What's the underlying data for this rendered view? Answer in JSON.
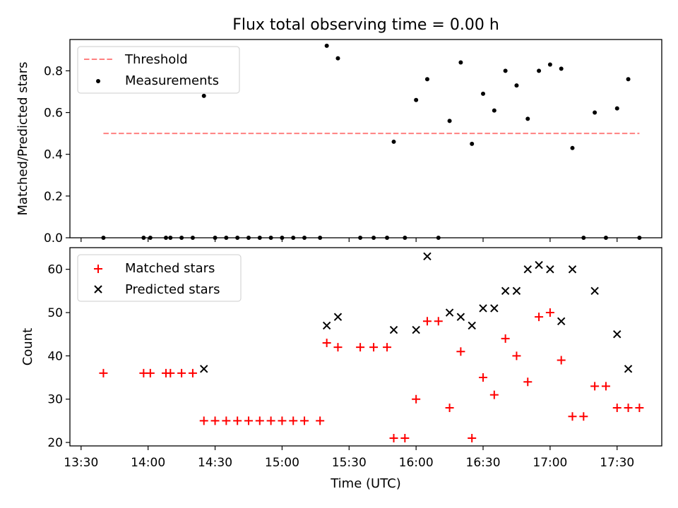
{
  "figure": {
    "title": "Flux total observing time = 0.00 h",
    "xlabel": "Time (UTC)"
  },
  "colors": {
    "threshold": "#ff8080",
    "measurement": "#000000",
    "matched": "#ff0000",
    "predicted": "#000000"
  },
  "chart_data": [
    {
      "type": "scatter",
      "ylabel": "Matched/Predicted stars",
      "ylim": [
        0,
        0.95
      ],
      "yticks": [
        "0.0",
        "0.2",
        "0.4",
        "0.6",
        "0.8"
      ],
      "xticks_shown": false,
      "legend_placement": "top-left",
      "series": [
        {
          "name": "Threshold",
          "kind": "dashed-line",
          "x": [
            "13:40",
            "17:40"
          ],
          "y": [
            0.5,
            0.5
          ]
        },
        {
          "name": "Measurements",
          "kind": "points",
          "x": [
            "13:40",
            "13:58",
            "14:01",
            "14:08",
            "14:10",
            "14:15",
            "14:20",
            "14:25",
            "14:30",
            "14:35",
            "14:40",
            "14:45",
            "14:50",
            "14:55",
            "15:00",
            "15:05",
            "15:10",
            "15:17",
            "15:20",
            "15:25",
            "15:35",
            "15:41",
            "15:47",
            "15:50",
            "15:55",
            "16:00",
            "16:05",
            "16:10",
            "16:15",
            "16:20",
            "16:25",
            "16:30",
            "16:35",
            "16:40",
            "16:45",
            "16:50",
            "16:55",
            "17:00",
            "17:05",
            "17:10",
            "17:15",
            "17:20",
            "17:25",
            "17:30",
            "17:35",
            "17:40"
          ],
          "y": [
            0,
            0,
            0,
            0,
            0,
            0,
            0,
            0.68,
            0,
            0,
            0,
            0,
            0,
            0,
            0,
            0,
            0,
            0,
            0.92,
            0.86,
            0,
            0,
            0,
            0.46,
            0,
            0.66,
            0.76,
            0,
            0.56,
            0.84,
            0.45,
            0.69,
            0.61,
            0.8,
            0.73,
            0.57,
            0.8,
            0.83,
            0.81,
            0.43,
            0,
            0.6,
            0,
            0.62,
            0.76,
            0
          ]
        }
      ]
    },
    {
      "type": "scatter",
      "ylabel": "Count",
      "ylim": [
        19.2,
        65
      ],
      "yticks": [
        "20",
        "30",
        "40",
        "50",
        "60"
      ],
      "xticks": [
        "13:30",
        "14:00",
        "14:30",
        "15:00",
        "15:30",
        "16:00",
        "16:30",
        "17:00",
        "17:30"
      ],
      "legend_placement": "top-left",
      "series": [
        {
          "name": "Matched stars",
          "marker": "+",
          "x": [
            "13:40",
            "13:58",
            "14:01",
            "14:08",
            "14:10",
            "14:15",
            "14:20",
            "14:25",
            "14:30",
            "14:35",
            "14:40",
            "14:45",
            "14:50",
            "14:55",
            "15:00",
            "15:05",
            "15:10",
            "15:17",
            "15:20",
            "15:25",
            "15:35",
            "15:41",
            "15:47",
            "15:50",
            "15:55",
            "16:00",
            "16:05",
            "16:10",
            "16:15",
            "16:20",
            "16:25",
            "16:30",
            "16:35",
            "16:40",
            "16:45",
            "16:50",
            "16:55",
            "17:00",
            "17:05",
            "17:10",
            "17:15",
            "17:20",
            "17:25",
            "17:30",
            "17:35",
            "17:40"
          ],
          "y": [
            36,
            36,
            36,
            36,
            36,
            36,
            36,
            25,
            25,
            25,
            25,
            25,
            25,
            25,
            25,
            25,
            25,
            25,
            43,
            42,
            42,
            42,
            42,
            21,
            21,
            30,
            48,
            48,
            28,
            41,
            21,
            35,
            31,
            44,
            40,
            34,
            49,
            50,
            39,
            26,
            26,
            33,
            33,
            28,
            28,
            28
          ]
        },
        {
          "name": "Predicted stars",
          "marker": "x",
          "x": [
            "14:25",
            "15:20",
            "15:25",
            "15:50",
            "16:00",
            "16:05",
            "16:15",
            "16:20",
            "16:25",
            "16:30",
            "16:35",
            "16:40",
            "16:45",
            "16:50",
            "16:55",
            "17:00",
            "17:05",
            "17:10",
            "17:20",
            "17:30",
            "17:35"
          ],
          "y": [
            37,
            47,
            49,
            46,
            46,
            63,
            50,
            49,
            47,
            51,
            51,
            55,
            55,
            60,
            61,
            60,
            48,
            60,
            55,
            45,
            37
          ]
        }
      ]
    }
  ]
}
